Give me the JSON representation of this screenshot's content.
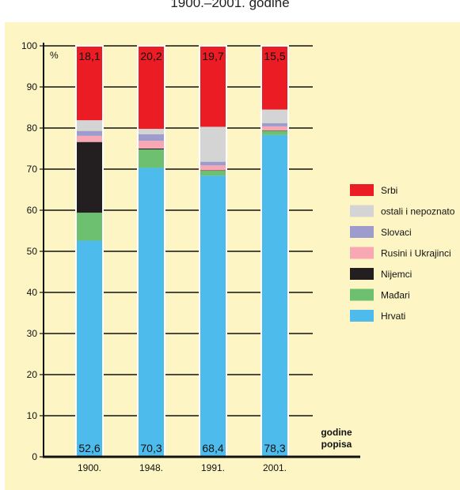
{
  "title": "1900.–2001. godine",
  "chart_data": {
    "type": "bar",
    "stacked": true,
    "categories": [
      "1900.",
      "1948.",
      "1991.",
      "2001."
    ],
    "ylim": [
      0,
      100
    ],
    "yticks": [
      0,
      10,
      20,
      30,
      40,
      50,
      60,
      70,
      80,
      90,
      100
    ],
    "ylabel": "%",
    "xlabel": "godine popisa",
    "series": [
      {
        "name": "Hrvati",
        "color": "#4dbbec",
        "values": [
          52.6,
          70.3,
          68.4,
          78.3
        ]
      },
      {
        "name": "Mađari",
        "color": "#6cc070",
        "values": [
          6.8,
          4.5,
          1.2,
          1.0
        ]
      },
      {
        "name": "Nijemci",
        "color": "#231f20",
        "values": [
          17.2,
          0.2,
          0.1,
          0.1
        ]
      },
      {
        "name": "Rusini i Ukrajinci",
        "color": "#f7a8b4",
        "values": [
          1.5,
          1.9,
          1.2,
          1.0
        ]
      },
      {
        "name": "Slovaci",
        "color": "#9e9ccd",
        "values": [
          1.2,
          1.6,
          0.9,
          0.8
        ]
      },
      {
        "name": "ostali i nepoznato",
        "color": "#d4d4d4",
        "values": [
          2.6,
          1.3,
          8.5,
          3.3
        ]
      },
      {
        "name": "Srbi",
        "color": "#ec1c24",
        "values": [
          18.1,
          20.2,
          19.7,
          15.5
        ]
      }
    ],
    "bottom_labels": [
      "52,6",
      "70,3",
      "68,4",
      "78,3"
    ],
    "top_labels": [
      "18,1",
      "20,2",
      "19,7",
      "15,5"
    ],
    "legend_order": [
      "Srbi",
      "ostali i nepoznato",
      "Slovaci",
      "Rusini i Ukrajinci",
      "Nijemci",
      "Mađari",
      "Hrvati"
    ],
    "legend_position": "right",
    "grid": true
  }
}
